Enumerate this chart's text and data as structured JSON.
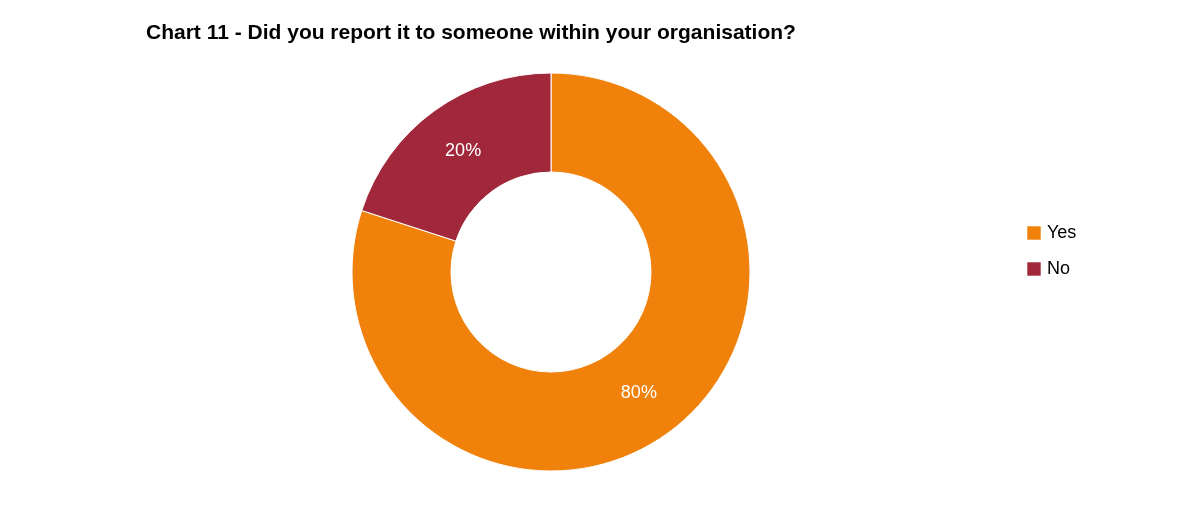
{
  "chart_data": {
    "type": "donut",
    "title": "Chart 11 - Did you report it to someone within your organisation?",
    "categories": [
      "Yes",
      "No"
    ],
    "values": [
      80,
      20
    ],
    "colors": [
      "#f0820c",
      "#a0283a"
    ],
    "value_labels": [
      "80%",
      "20%"
    ],
    "legend": "right"
  }
}
